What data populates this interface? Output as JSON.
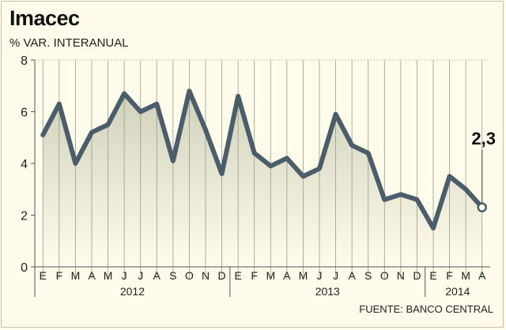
{
  "header": {
    "title": "Imacec",
    "subtitle": "% VAR. INTERANUAL"
  },
  "footer": {
    "source": "FUENTE: BANCO CENTRAL"
  },
  "chart_data": {
    "type": "line",
    "title": "Imacec",
    "subtitle": "% VAR. INTERANUAL",
    "xlabel": "",
    "ylabel": "",
    "ylim": [
      0,
      8
    ],
    "yticks": [
      0,
      2,
      4,
      6,
      8
    ],
    "grid": "vertical",
    "categories": [
      "E",
      "F",
      "M",
      "A",
      "M",
      "J",
      "J",
      "A",
      "S",
      "O",
      "N",
      "D",
      "E",
      "F",
      "M",
      "A",
      "M",
      "J",
      "J",
      "A",
      "S",
      "O",
      "N",
      "D",
      "E",
      "F",
      "M",
      "A"
    ],
    "years": [
      {
        "label": "2012",
        "start": 0,
        "end": 11
      },
      {
        "label": "2013",
        "start": 12,
        "end": 23
      },
      {
        "label": "2014",
        "start": 24,
        "end": 27
      }
    ],
    "series": [
      {
        "values": [
          5.1,
          6.3,
          4.0,
          5.2,
          5.5,
          6.7,
          6.0,
          6.3,
          4.1,
          6.8,
          5.3,
          3.6,
          6.6,
          4.4,
          3.9,
          4.2,
          3.5,
          3.8,
          5.9,
          4.7,
          4.4,
          2.6,
          2.8,
          2.6,
          1.5,
          3.5,
          3.0,
          2.3
        ]
      }
    ],
    "annotation": {
      "index": 27,
      "text": "2,3"
    },
    "line_color": "#4a5d6b",
    "fill_color": "#d6d8c4",
    "background": "#fffbea"
  }
}
